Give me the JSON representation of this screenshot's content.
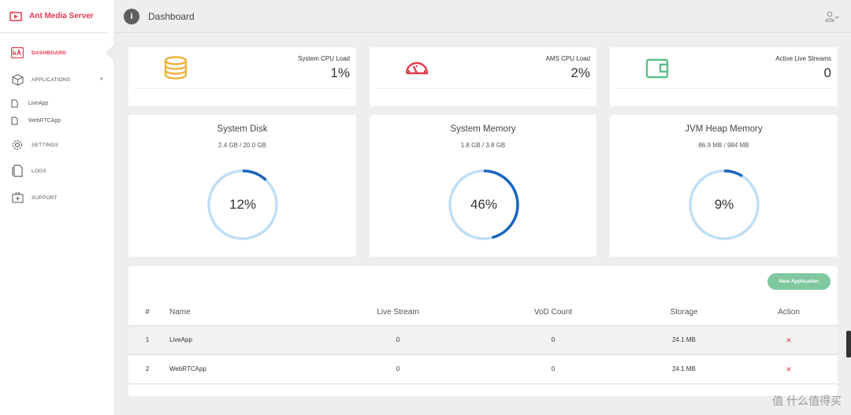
{
  "app": {
    "brand": "Ant Media Server",
    "accent": "#e23a4e"
  },
  "sidebar": {
    "items": [
      {
        "label": "DASHBOARD",
        "icon": "dashboard-icon",
        "active": true
      },
      {
        "label": "APPLICATIONS",
        "icon": "cube-icon"
      },
      {
        "label": "SETTINGS",
        "icon": "gear-icon"
      },
      {
        "label": "LOGS",
        "icon": "logs-icon"
      },
      {
        "label": "SUPPORT",
        "icon": "support-icon"
      }
    ],
    "applications": [
      "LiveApp",
      "WebRTCApp"
    ]
  },
  "header": {
    "title": "Dashboard",
    "info_glyph": "i"
  },
  "stats": [
    {
      "label": "System CPU Load",
      "value": "1%",
      "icon": "database-icon",
      "color": "#f0b23a"
    },
    {
      "label": "AMS CPU Load",
      "value": "2%",
      "icon": "speedometer-icon",
      "color": "#e23a4e"
    },
    {
      "label": "Active Live Streams",
      "value": "0",
      "icon": "wallet-icon",
      "color": "#5cbf8a"
    }
  ],
  "gauges": [
    {
      "title": "System Disk",
      "sub": "2.4 GB / 20.0 GB",
      "percent_text": "12%",
      "percent": 12
    },
    {
      "title": "System Memory",
      "sub": "1.8 GB / 3.8 GB",
      "percent_text": "46%",
      "percent": 46
    },
    {
      "title": "JVM Heap Memory",
      "sub": "86.9 MB / 984 MB",
      "percent_text": "9%",
      "percent": 9
    }
  ],
  "gauge_colors": {
    "track": "#bfdff6",
    "fill": "#1a66c0"
  },
  "table": {
    "new_button": "New Application",
    "headers": [
      "#",
      "Name",
      "Live Stream",
      "VoD Count",
      "Storage",
      "Action"
    ],
    "rows": [
      {
        "index": "1",
        "name": "LiveApp",
        "live": "0",
        "vod": "0",
        "storage": "24.1 MB",
        "action": "×"
      },
      {
        "index": "2",
        "name": "WebRTCApp",
        "live": "0",
        "vod": "0",
        "storage": "24.1 MB",
        "action": "×"
      }
    ]
  },
  "watermark": "值 什么值得买"
}
